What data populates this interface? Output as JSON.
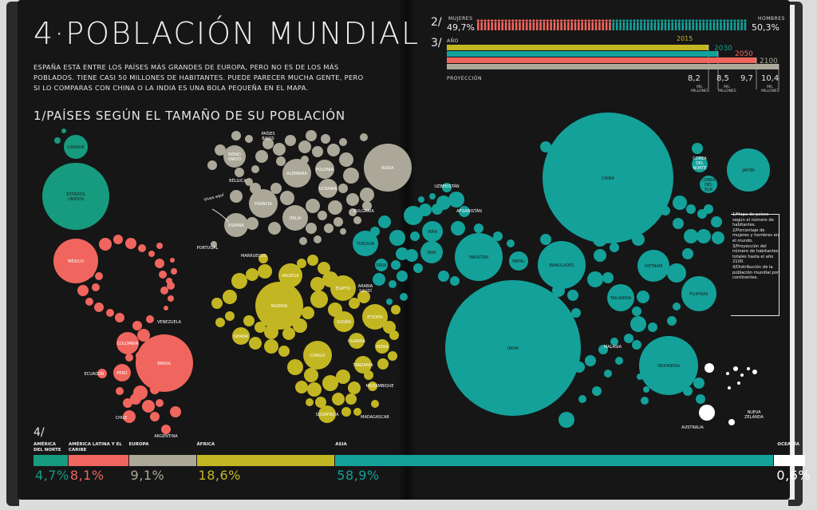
{
  "title": "4·POBLACIÓN MUNDIAL",
  "intro": "ESPAÑA ESTÁ ENTRE LOS PAÍSES MÁS GRANDES DE EUROPA, PERO NO ES DE LOS MÁS POBLADOS. TIENE CASI 50 MILLONES DE HABITANTES. PUEDE PARECER MUCHA GENTE, PERO SI LO COMPARAS CON CHINA O LA INDIA ES UNA BOLA PEQUEÑA EN EL MAPA.",
  "section1_title": "1/PAÍSES SEGÚN EL TAMAÑO DE SU POBLACIÓN",
  "annotation_spain": "Vives aquí",
  "colors": {
    "background": "#161616",
    "north_america": "#169b7f",
    "latin_america": "#f0665e",
    "europe": "#aca899",
    "africa": "#c3b623",
    "asia": "#14a19a",
    "oceania": "#ffffff",
    "women": "#f0665e",
    "men": "#14a19a"
  },
  "section2": {
    "number": "2/",
    "women_label": "MUJERES",
    "women_pct": "49,7%",
    "men_label": "HOMBRES",
    "men_pct": "50,3%"
  },
  "section3": {
    "number": "3/",
    "year_label": "AÑO",
    "projection_label": "PROYECCIÓN",
    "millions_label": "MIL MILLONES",
    "years": [
      "2015",
      "2030",
      "2050",
      "2100"
    ],
    "values": [
      "8,2",
      "8,5",
      "9,7",
      "10,4"
    ]
  },
  "legend_notes": [
    "1/Mapa de países según el número de habitantes.",
    "2/Porcentaje de mujeres y hombres en el mundo.",
    "3/Proyección del número de habitantes totales hasta el año 2100.",
    "4/Distribución de la población mundial por continentes."
  ],
  "section4": {
    "number": "4/",
    "regions": [
      {
        "name": "AMÉRICA DEL NORTE",
        "pct": "4,7%",
        "color": "#169b7f"
      },
      {
        "name": "AMÉRICA LATINA Y EL CARIBE",
        "pct": "8,1%",
        "color": "#f0665e"
      },
      {
        "name": "EUROPA",
        "pct": "9,1%",
        "color": "#aca899"
      },
      {
        "name": "ÁFRICA",
        "pct": "18,6%",
        "color": "#c3b623"
      },
      {
        "name": "ASIA",
        "pct": "58,9%",
        "color": "#14a19a"
      },
      {
        "name": "OCEANÍA",
        "pct": "0,6%",
        "color": "#ffffff"
      }
    ]
  },
  "chart_data": {
    "type": "bubble-map",
    "countries": [
      {
        "name": "CANADÁ",
        "region": "north_america"
      },
      {
        "name": "ESTADOS UNIDOS",
        "region": "north_america"
      },
      {
        "name": "MÉXICO",
        "region": "latin_america"
      },
      {
        "name": "VENEZUELA",
        "region": "latin_america"
      },
      {
        "name": "COLOMBIA",
        "region": "latin_america"
      },
      {
        "name": "ECUADOR",
        "region": "latin_america"
      },
      {
        "name": "PERÚ",
        "region": "latin_america"
      },
      {
        "name": "BRASIL",
        "region": "latin_america"
      },
      {
        "name": "CHILE",
        "region": "latin_america"
      },
      {
        "name": "ARGENTINA",
        "region": "latin_america"
      },
      {
        "name": "REINO UNIDO",
        "region": "europe"
      },
      {
        "name": "PAÍSES BAJOS",
        "region": "europe"
      },
      {
        "name": "BÉLGICA",
        "region": "europe"
      },
      {
        "name": "ALEMANIA",
        "region": "europe"
      },
      {
        "name": "POLONIA",
        "region": "europe"
      },
      {
        "name": "RUSIA",
        "region": "europe"
      },
      {
        "name": "UCRANIA",
        "region": "europe"
      },
      {
        "name": "FRANCIA",
        "region": "europe"
      },
      {
        "name": "ITALIA",
        "region": "europe"
      },
      {
        "name": "ESPAÑA",
        "region": "europe"
      },
      {
        "name": "PORTUGAL",
        "region": "europe"
      },
      {
        "name": "BULGARIA",
        "region": "europe"
      },
      {
        "name": "MARRUECOS",
        "region": "africa"
      },
      {
        "name": "ARGELIA",
        "region": "africa"
      },
      {
        "name": "EGIPTO",
        "region": "africa"
      },
      {
        "name": "NIGERIA",
        "region": "africa"
      },
      {
        "name": "SUDÁN",
        "region": "africa"
      },
      {
        "name": "ETIOPÍA",
        "region": "africa"
      },
      {
        "name": "GHANA",
        "region": "africa"
      },
      {
        "name": "UGANDA",
        "region": "africa"
      },
      {
        "name": "KENIA",
        "region": "africa"
      },
      {
        "name": "CONGO",
        "region": "africa"
      },
      {
        "name": "TANZANIA",
        "region": "africa"
      },
      {
        "name": "MOZAMBIQUE",
        "region": "africa"
      },
      {
        "name": "SUDÁFRICA",
        "region": "africa"
      },
      {
        "name": "MADAGASCAR",
        "region": "africa"
      },
      {
        "name": "TURQUÍA",
        "region": "asia"
      },
      {
        "name": "SIRIA",
        "region": "asia"
      },
      {
        "name": "ARABIA SAUDÍ",
        "region": "asia"
      },
      {
        "name": "IRAK",
        "region": "asia"
      },
      {
        "name": "IRÁN",
        "region": "asia"
      },
      {
        "name": "UZBEKISTÁN",
        "region": "asia"
      },
      {
        "name": "AFGANISTÁN",
        "region": "asia"
      },
      {
        "name": "PAKISTÁN",
        "region": "asia"
      },
      {
        "name": "NEPAL",
        "region": "asia"
      },
      {
        "name": "INDIA",
        "region": "asia"
      },
      {
        "name": "BANGLADÉS",
        "region": "asia"
      },
      {
        "name": "CHINA",
        "region": "asia"
      },
      {
        "name": "COREA DEL NORTE",
        "region": "asia"
      },
      {
        "name": "COREA DEL SUR",
        "region": "asia"
      },
      {
        "name": "JAPÓN",
        "region": "asia"
      },
      {
        "name": "VIETNAM",
        "region": "asia"
      },
      {
        "name": "TAILANDIA",
        "region": "asia"
      },
      {
        "name": "MALASIA",
        "region": "asia"
      },
      {
        "name": "FILIPINAS",
        "region": "asia"
      },
      {
        "name": "INDONESIA",
        "region": "asia"
      },
      {
        "name": "AUSTRALIA",
        "region": "oceania"
      },
      {
        "name": "NUEVA ZELANDA",
        "region": "oceania"
      }
    ],
    "gender_split": {
      "women": 49.7,
      "men": 50.3
    },
    "projection": [
      {
        "year": "2015",
        "value": 8.2
      },
      {
        "year": "2030",
        "value": 8.5
      },
      {
        "year": "2050",
        "value": 9.7
      },
      {
        "year": "2100",
        "value": 10.4
      }
    ],
    "continents": [
      {
        "name": "AMÉRICA DEL NORTE",
        "value": 4.7
      },
      {
        "name": "AMÉRICA LATINA Y EL CARIBE",
        "value": 8.1
      },
      {
        "name": "EUROPA",
        "value": 9.1
      },
      {
        "name": "ÁFRICA",
        "value": 18.6
      },
      {
        "name": "ASIA",
        "value": 58.9
      },
      {
        "name": "OCEANÍA",
        "value": 0.6
      }
    ]
  }
}
